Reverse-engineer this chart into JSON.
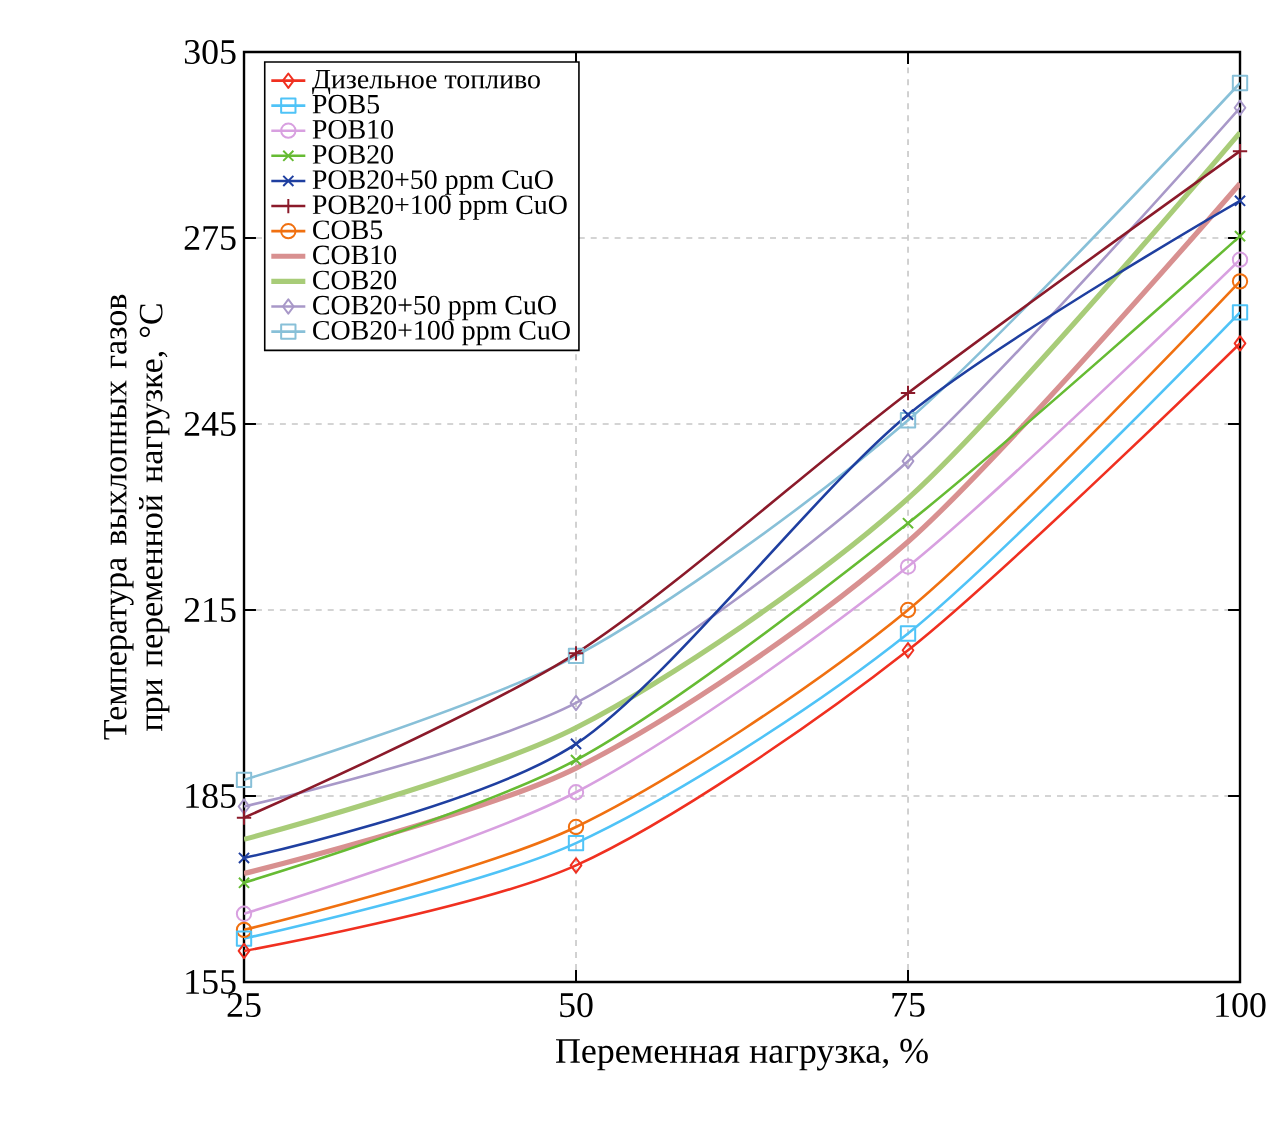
{
  "chart_data": {
    "type": "line",
    "xlabel": "Переменная нагрузка, %",
    "ylabel": "Температура выхлопных газов при переменной нагрузке, °C",
    "x": [
      25,
      50,
      75,
      100
    ],
    "xlim": [
      25,
      100
    ],
    "xticks": [
      25,
      50,
      75,
      100
    ],
    "ylim": [
      155,
      305
    ],
    "yticks": [
      155,
      185,
      215,
      245,
      275,
      305
    ],
    "grid": true,
    "legend": "top left",
    "series": [
      {
        "name": "Дизельное топливо",
        "color": "#f03020",
        "marker": "diamond",
        "values": [
          160,
          173.8,
          208.5,
          258
        ]
      },
      {
        "name": "POB5",
        "color": "#4fc3f7",
        "marker": "square",
        "values": [
          162,
          177.4,
          211.2,
          263
        ]
      },
      {
        "name": "POB10",
        "color": "#d8a0e0",
        "marker": "circle",
        "values": [
          166,
          185.6,
          222,
          271.5
        ]
      },
      {
        "name": "POB20",
        "color": "#66bb33",
        "marker": "cross",
        "values": [
          171,
          190.8,
          229,
          275.3
        ]
      },
      {
        "name": "POB20+50 ppm CuO",
        "color": "#1f3fa0",
        "marker": "cross",
        "values": [
          175,
          193.4,
          246.5,
          281
        ]
      },
      {
        "name": "POB20+100 ppm CuO",
        "color": "#8b1a2a",
        "marker": "plus",
        "values": [
          181.5,
          208,
          250,
          289
        ]
      },
      {
        "name": "COB5",
        "color": "#f07010",
        "marker": "circle",
        "values": [
          163.4,
          180,
          215,
          268
        ]
      },
      {
        "name": "COB10",
        "color": "#d89090",
        "marker": "none",
        "values": [
          172.5,
          189.5,
          226,
          283.8
        ]
      },
      {
        "name": "COB20",
        "color": "#a8cc78",
        "marker": "none",
        "values": [
          178,
          196,
          233,
          292
        ]
      },
      {
        "name": "COB20+50 ppm CuO",
        "color": "#a898c8",
        "marker": "diamond",
        "values": [
          183.3,
          200,
          239,
          296
        ]
      },
      {
        "name": "COB20+100 ppm CuO",
        "color": "#88c0d8",
        "marker": "square",
        "values": [
          187.6,
          207.6,
          245.6,
          300
        ]
      }
    ]
  }
}
